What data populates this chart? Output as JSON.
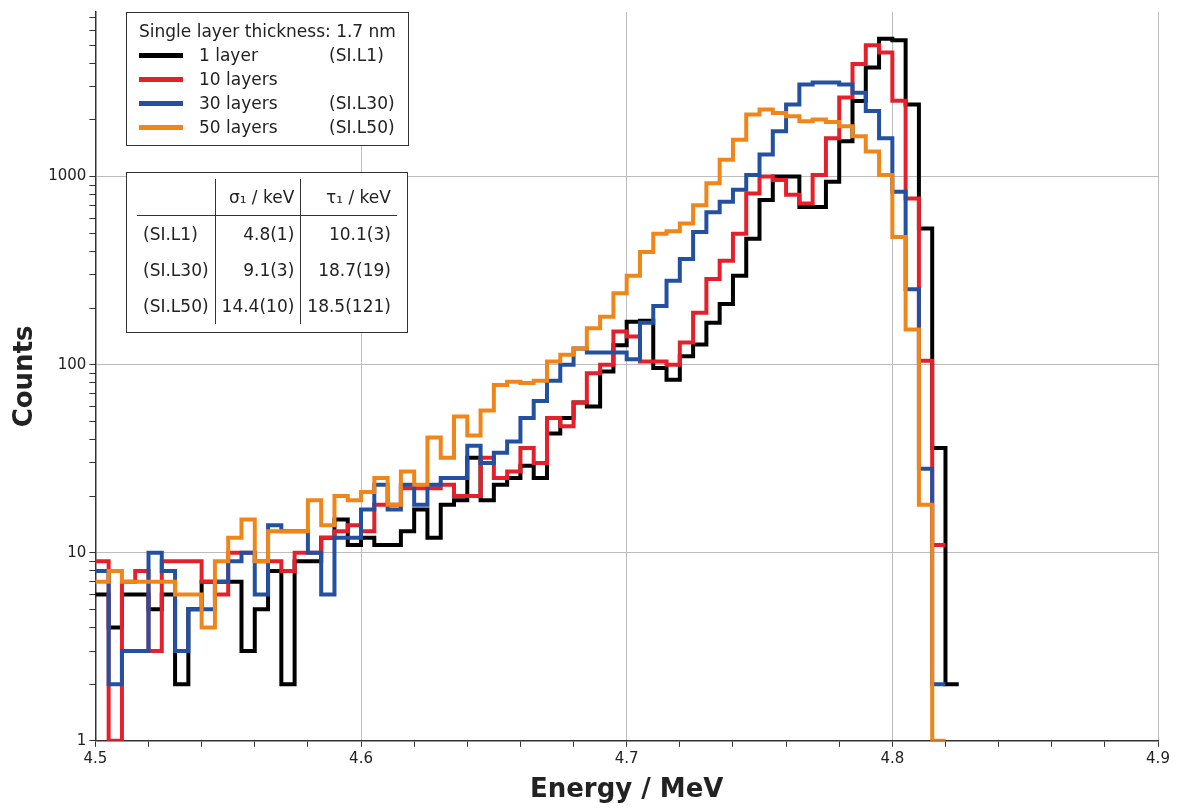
{
  "chart_data": {
    "type": "histogram",
    "xlabel": "Energy / MeV",
    "ylabel": "Counts",
    "legend_title": "Single layer thickness: 1.7 nm",
    "legend": "top left",
    "grid": true,
    "log": "y",
    "xlim": [
      4.5,
      4.9
    ],
    "xticks": [
      4.5,
      {
        "value": 4.52,
        "label": null
      },
      {
        "value": 4.54,
        "label": null
      },
      {
        "value": 4.56,
        "label": null
      },
      {
        "value": 4.58,
        "label": null
      },
      4.6,
      {
        "value": 4.62,
        "label": null
      },
      {
        "value": 4.64,
        "label": null
      },
      {
        "value": 4.66,
        "label": null
      },
      {
        "value": 4.68,
        "label": null
      },
      4.7,
      {
        "value": 4.72,
        "label": null
      },
      {
        "value": 4.74,
        "label": null
      },
      {
        "value": 4.76,
        "label": null
      },
      {
        "value": 4.78,
        "label": null
      },
      4.8,
      {
        "value": 4.82,
        "label": null
      },
      {
        "value": 4.84,
        "label": null
      },
      {
        "value": 4.86,
        "label": null
      },
      {
        "value": 4.88,
        "label": null
      },
      4.9
    ],
    "ylim": [
      1,
      7500
    ],
    "yticks": [
      1,
      {
        "value": 2,
        "label": null
      },
      {
        "value": 3,
        "label": null
      },
      {
        "value": 4,
        "label": null
      },
      {
        "value": 5,
        "label": null
      },
      {
        "value": 6,
        "label": null
      },
      {
        "value": 7,
        "label": null
      },
      {
        "value": 8,
        "label": null
      },
      {
        "value": 9,
        "label": null
      },
      10,
      {
        "value": 20,
        "label": null
      },
      {
        "value": 30,
        "label": null
      },
      {
        "value": 40,
        "label": null
      },
      {
        "value": 50,
        "label": null
      },
      {
        "value": 60,
        "label": null
      },
      {
        "value": 70,
        "label": null
      },
      {
        "value": 80,
        "label": null
      },
      {
        "value": 90,
        "label": null
      },
      100,
      {
        "value": 200,
        "label": null
      },
      {
        "value": 300,
        "label": null
      },
      {
        "value": 400,
        "label": null
      },
      {
        "value": 500,
        "label": null
      },
      {
        "value": 600,
        "label": null
      },
      {
        "value": 700,
        "label": null
      },
      {
        "value": 800,
        "label": null
      },
      {
        "value": 900,
        "label": null
      },
      1000,
      {
        "value": 2000,
        "label": null
      },
      {
        "value": 3000,
        "label": null
      },
      {
        "value": 4000,
        "label": null
      },
      {
        "value": 5000,
        "label": null
      },
      {
        "value": 6000,
        "label": null
      },
      {
        "value": 7000,
        "label": null
      }
    ],
    "bins": [
      4.5,
      4.505,
      4.51,
      4.515,
      4.52,
      4.525,
      4.53,
      4.535,
      4.54,
      4.545,
      4.55,
      4.555,
      4.56,
      4.565,
      4.57,
      4.575,
      4.58,
      4.585,
      4.59,
      4.595,
      4.6,
      4.605,
      4.61,
      4.615,
      4.62,
      4.625,
      4.63,
      4.635,
      4.64,
      4.645,
      4.65,
      4.655,
      4.66,
      4.665,
      4.67,
      4.675,
      4.68,
      4.685,
      4.69,
      4.695,
      4.7,
      4.705,
      4.71,
      4.715,
      4.72,
      4.725,
      4.73,
      4.735,
      4.74,
      4.745,
      4.75,
      4.755,
      4.76,
      4.765,
      4.77,
      4.775,
      4.78,
      4.785,
      4.79,
      4.795,
      4.8,
      4.805,
      4.81,
      4.815,
      4.82,
      4.825
    ],
    "series": [
      {
        "name": "1 layer (SI.L1)",
        "color": "#000000",
        "values": [
          6,
          4,
          6,
          6,
          5,
          6,
          2,
          5,
          7,
          7,
          7,
          3,
          5,
          8,
          2,
          9,
          9,
          12,
          15,
          11,
          12,
          11,
          11,
          13,
          17,
          12,
          18,
          19,
          32,
          19,
          23,
          25,
          29,
          25,
          43,
          52,
          63,
          60,
          92,
          127,
          169,
          171,
          96,
          83,
          111,
          128,
          167,
          210,
          297,
          467,
          750,
          1000,
          1000,
          690,
          690,
          940,
          1540,
          2520,
          3800,
          5400,
          5300,
          2420,
          530,
          36,
          2
        ]
      },
      {
        "name": "10 layers",
        "color": "#e5202a",
        "bins": [
          4.5,
          4.505,
          4.51,
          4.515,
          4.52,
          4.525,
          4.53,
          4.535,
          4.54,
          4.545,
          4.55,
          4.555,
          4.56,
          4.565,
          4.57,
          4.575,
          4.58,
          4.585,
          4.59,
          4.595,
          4.6,
          4.605,
          4.61,
          4.615,
          4.62,
          4.625,
          4.63,
          4.635,
          4.64,
          4.645,
          4.65,
          4.655,
          4.66,
          4.665,
          4.67,
          4.675,
          4.68,
          4.685,
          4.69,
          4.695,
          4.7,
          4.705,
          4.71,
          4.715,
          4.72,
          4.725,
          4.73,
          4.735,
          4.74,
          4.745,
          4.75,
          4.755,
          4.76,
          4.765,
          4.77,
          4.775,
          4.78,
          4.785,
          4.79,
          4.795,
          4.8,
          4.805,
          4.81,
          4.815,
          4.82
        ],
        "values": [
          9,
          1,
          7,
          8,
          3,
          9,
          9,
          9,
          7,
          6,
          10,
          10,
          9,
          9,
          8,
          10,
          10,
          12,
          13,
          14,
          13,
          18,
          18,
          22,
          22,
          22,
          23,
          20,
          20,
          32,
          25,
          27,
          36,
          30,
          52,
          47,
          63,
          90,
          100,
          150,
          141,
          104,
          104,
          100,
          131,
          189,
          285,
          357,
          497,
          813,
          1000,
          960,
          800,
          720,
          1020,
          1600,
          2630,
          3970,
          4990,
          4570,
          2530,
          765,
          105,
          11
        ]
      },
      {
        "name": "30 layers (SI.L30)",
        "color": "#2350a0",
        "bins": [
          4.5,
          4.505,
          4.51,
          4.515,
          4.52,
          4.525,
          4.53,
          4.535,
          4.54,
          4.545,
          4.55,
          4.555,
          4.56,
          4.565,
          4.57,
          4.575,
          4.58,
          4.585,
          4.59,
          4.595,
          4.6,
          4.605,
          4.61,
          4.615,
          4.62,
          4.625,
          4.63,
          4.635,
          4.64,
          4.645,
          4.65,
          4.655,
          4.66,
          4.665,
          4.67,
          4.675,
          4.68,
          4.685,
          4.69,
          4.695,
          4.7,
          4.705,
          4.71,
          4.715,
          4.72,
          4.725,
          4.73,
          4.735,
          4.74,
          4.745,
          4.75,
          4.755,
          4.76,
          4.765,
          4.77,
          4.775,
          4.78,
          4.785,
          4.79,
          4.795,
          4.8,
          4.805,
          4.81,
          4.815,
          4.82
        ],
        "values": [
          8,
          2,
          3,
          3,
          10,
          8,
          3,
          5,
          5,
          7,
          9,
          10,
          6,
          14,
          13,
          13,
          10,
          6,
          12,
          12,
          17,
          23,
          17,
          23,
          18,
          23,
          25,
          25,
          37,
          30,
          34,
          39,
          52,
          64,
          82,
          100,
          122,
          116,
          116,
          116,
          107,
          167,
          205,
          279,
          365,
          507,
          647,
          734,
          850,
          1020,
          1310,
          1740,
          2420,
          3090,
          3160,
          3160,
          3090,
          2790,
          2230,
          1600,
          830,
          252,
          28,
          2
        ]
      },
      {
        "name": "50 layers (SI.L50)",
        "color": "#f08519",
        "bins": [
          4.5,
          4.505,
          4.51,
          4.515,
          4.52,
          4.525,
          4.53,
          4.535,
          4.54,
          4.545,
          4.55,
          4.555,
          4.56,
          4.565,
          4.57,
          4.575,
          4.58,
          4.585,
          4.59,
          4.595,
          4.6,
          4.605,
          4.61,
          4.615,
          4.62,
          4.625,
          4.63,
          4.635,
          4.64,
          4.645,
          4.65,
          4.655,
          4.66,
          4.665,
          4.67,
          4.675,
          4.68,
          4.685,
          4.69,
          4.695,
          4.7,
          4.705,
          4.71,
          4.715,
          4.72,
          4.725,
          4.73,
          4.735,
          4.74,
          4.745,
          4.75,
          4.755,
          4.76,
          4.765,
          4.77,
          4.775,
          4.78,
          4.785,
          4.79,
          4.795,
          4.8,
          4.805,
          4.81,
          4.815,
          4.82
        ],
        "values": [
          7,
          8,
          7,
          7,
          7,
          7,
          6,
          6,
          4,
          9,
          12,
          15,
          9,
          13,
          13,
          13,
          19,
          14,
          20,
          19,
          21,
          25,
          18,
          27,
          23,
          41,
          32,
          53,
          42,
          57,
          78,
          81,
          80,
          82,
          104,
          113,
          122,
          156,
          180,
          240,
          297,
          397,
          497,
          512,
          563,
          705,
          921,
          1227,
          1570,
          2140,
          2275,
          2180,
          2090,
          1970,
          2010,
          1950,
          1850,
          1640,
          1360,
          1020,
          477,
          154,
          18,
          1
        ]
      }
    ],
    "annotations": [
      "\tσ₁ / keV\tτ₁ / keV",
      "(SI.L1)\t4.8(1)\t10.1(3)",
      "(SI.L30)\t9.1(3)\t18.7(19)",
      "(SI.L50)\t14.4(10)\t18.5(121)"
    ]
  }
}
